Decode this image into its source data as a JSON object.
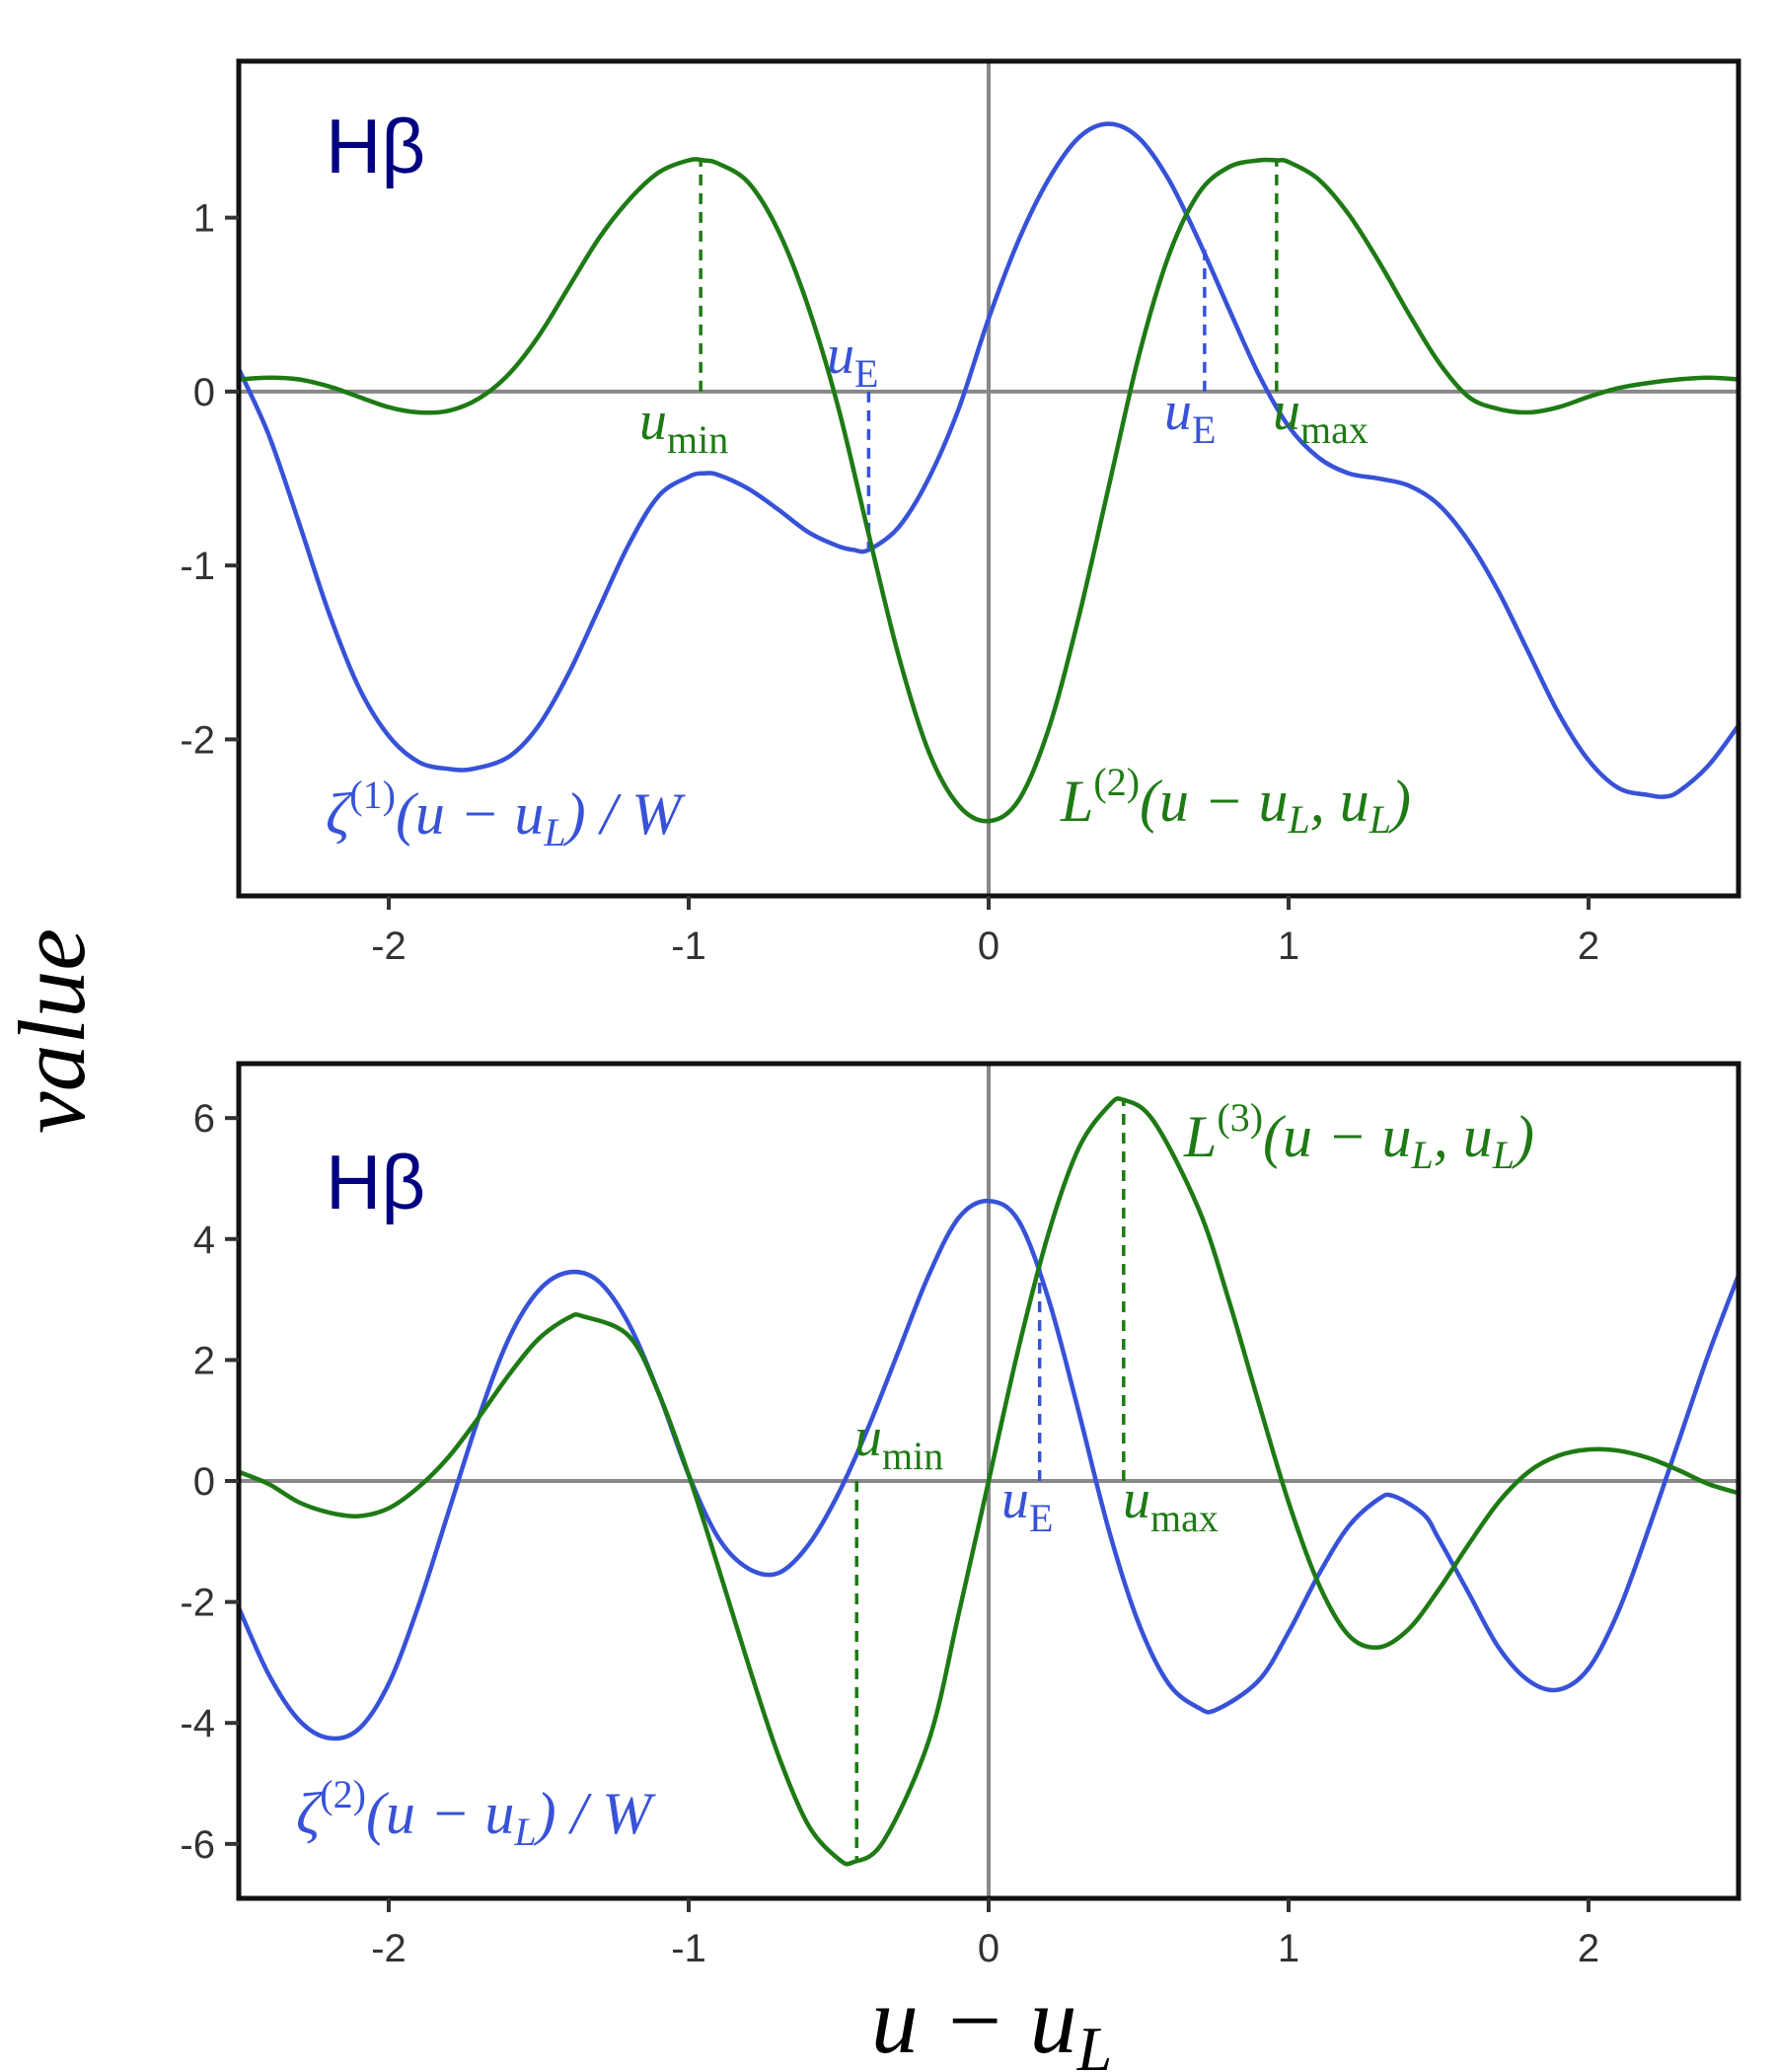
{
  "figure": {
    "ylabel": "value",
    "xlabel": {
      "main": "u − u",
      "sub": "L"
    }
  },
  "colors": {
    "blue": "#3752d8",
    "green": "#1e7a14",
    "zero_line": "#888888",
    "frame": "#111111",
    "panel_tag": "#000080"
  },
  "panels": [
    {
      "tag": "Hβ",
      "blue_label": {
        "head": "ζ",
        "sup": "(1)",
        "body": "(u − u",
        "sub": "L",
        "tail": ") / W"
      },
      "green_label": {
        "head": "L",
        "sup": "(2)",
        "body": "(u − u",
        "sub": "L",
        "mid": ", u",
        "sub2": "L",
        "tail": ")"
      },
      "markers": [
        {
          "var": "u",
          "sub": "min",
          "color": "green"
        },
        {
          "var": "u",
          "sub": "E",
          "color": "blue"
        },
        {
          "var": "u",
          "sub": "E",
          "color": "blue"
        },
        {
          "var": "u",
          "sub": "max",
          "color": "green"
        }
      ]
    },
    {
      "tag": "Hβ",
      "blue_label": {
        "head": "ζ",
        "sup": "(2)",
        "body": "(u − u",
        "sub": "L",
        "tail": ") / W"
      },
      "green_label": {
        "head": "L",
        "sup": "(3)",
        "body": "(u − u",
        "sub": "L",
        "mid": ", u",
        "sub2": "L",
        "tail": ")"
      },
      "markers": [
        {
          "var": "u",
          "sub": "min",
          "color": "green"
        },
        {
          "var": "u",
          "sub": "E",
          "color": "blue"
        },
        {
          "var": "u",
          "sub": "max",
          "color": "green"
        }
      ]
    }
  ],
  "chart_data": [
    {
      "type": "line",
      "xlim": [
        -2.5,
        2.5
      ],
      "ylim": [
        -2.9,
        1.9
      ],
      "xticks": [
        -2,
        -1,
        0,
        1,
        2
      ],
      "yticks": [
        -2,
        -1,
        0,
        1
      ],
      "reference_lines": {
        "x": 0,
        "y": 0
      },
      "series": [
        {
          "color": "blue",
          "points": [
            [
              -2.5,
              0.13
            ],
            [
              -2.4,
              -0.25
            ],
            [
              -2.3,
              -0.75
            ],
            [
              -2.2,
              -1.27
            ],
            [
              -2.1,
              -1.7
            ],
            [
              -2.0,
              -1.98
            ],
            [
              -1.9,
              -2.13
            ],
            [
              -1.8,
              -2.17
            ],
            [
              -1.72,
              -2.17
            ],
            [
              -1.6,
              -2.1
            ],
            [
              -1.5,
              -1.92
            ],
            [
              -1.4,
              -1.62
            ],
            [
              -1.3,
              -1.25
            ],
            [
              -1.2,
              -0.88
            ],
            [
              -1.1,
              -0.6
            ],
            [
              -1.0,
              -0.49
            ],
            [
              -0.95,
              -0.47
            ],
            [
              -0.9,
              -0.48
            ],
            [
              -0.8,
              -0.56
            ],
            [
              -0.7,
              -0.68
            ],
            [
              -0.6,
              -0.81
            ],
            [
              -0.5,
              -0.89
            ],
            [
              -0.45,
              -0.91
            ],
            [
              -0.4,
              -0.91
            ],
            [
              -0.3,
              -0.78
            ],
            [
              -0.2,
              -0.5
            ],
            [
              -0.1,
              -0.1
            ],
            [
              0.0,
              0.42
            ],
            [
              0.1,
              0.87
            ],
            [
              0.2,
              1.22
            ],
            [
              0.3,
              1.46
            ],
            [
              0.4,
              1.54
            ],
            [
              0.5,
              1.46
            ],
            [
              0.6,
              1.22
            ],
            [
              0.7,
              0.87
            ],
            [
              0.8,
              0.48
            ],
            [
              0.9,
              0.1
            ],
            [
              1.0,
              -0.2
            ],
            [
              1.1,
              -0.38
            ],
            [
              1.2,
              -0.47
            ],
            [
              1.3,
              -0.5
            ],
            [
              1.4,
              -0.54
            ],
            [
              1.5,
              -0.65
            ],
            [
              1.6,
              -0.86
            ],
            [
              1.7,
              -1.15
            ],
            [
              1.8,
              -1.5
            ],
            [
              1.9,
              -1.85
            ],
            [
              2.0,
              -2.12
            ],
            [
              2.1,
              -2.28
            ],
            [
              2.2,
              -2.32
            ],
            [
              2.25,
              -2.33
            ],
            [
              2.3,
              -2.3
            ],
            [
              2.4,
              -2.15
            ],
            [
              2.5,
              -1.92
            ]
          ]
        },
        {
          "color": "green",
          "points": [
            [
              -2.5,
              0.07
            ],
            [
              -2.4,
              0.08
            ],
            [
              -2.3,
              0.07
            ],
            [
              -2.2,
              0.03
            ],
            [
              -2.1,
              -0.03
            ],
            [
              -2.0,
              -0.09
            ],
            [
              -1.9,
              -0.12
            ],
            [
              -1.8,
              -0.11
            ],
            [
              -1.7,
              -0.04
            ],
            [
              -1.6,
              0.1
            ],
            [
              -1.5,
              0.32
            ],
            [
              -1.4,
              0.6
            ],
            [
              -1.3,
              0.88
            ],
            [
              -1.2,
              1.1
            ],
            [
              -1.1,
              1.26
            ],
            [
              -1.0,
              1.33
            ],
            [
              -0.95,
              1.33
            ],
            [
              -0.9,
              1.31
            ],
            [
              -0.8,
              1.2
            ],
            [
              -0.7,
              0.92
            ],
            [
              -0.6,
              0.48
            ],
            [
              -0.5,
              -0.1
            ],
            [
              -0.4,
              -0.82
            ],
            [
              -0.3,
              -1.52
            ],
            [
              -0.2,
              -2.07
            ],
            [
              -0.1,
              -2.38
            ],
            [
              0.0,
              -2.47
            ],
            [
              0.1,
              -2.35
            ],
            [
              0.2,
              -1.94
            ],
            [
              0.3,
              -1.3
            ],
            [
              0.4,
              -0.55
            ],
            [
              0.5,
              0.2
            ],
            [
              0.6,
              0.78
            ],
            [
              0.7,
              1.14
            ],
            [
              0.8,
              1.29
            ],
            [
              0.9,
              1.33
            ],
            [
              0.96,
              1.33
            ],
            [
              1.0,
              1.32
            ],
            [
              1.1,
              1.22
            ],
            [
              1.2,
              1.02
            ],
            [
              1.3,
              0.75
            ],
            [
              1.4,
              0.45
            ],
            [
              1.5,
              0.17
            ],
            [
              1.6,
              -0.03
            ],
            [
              1.7,
              -0.1
            ],
            [
              1.8,
              -0.12
            ],
            [
              1.9,
              -0.09
            ],
            [
              2.0,
              -0.03
            ],
            [
              2.1,
              0.02
            ],
            [
              2.2,
              0.05
            ],
            [
              2.3,
              0.07
            ],
            [
              2.4,
              0.08
            ],
            [
              2.5,
              0.07
            ]
          ]
        }
      ],
      "markers": [
        {
          "x": -0.96,
          "y": 1.33,
          "color": "green"
        },
        {
          "x": -0.4,
          "y": -0.9,
          "color": "blue"
        },
        {
          "x": 0.72,
          "y": 0.82,
          "color": "blue"
        },
        {
          "x": 0.96,
          "y": 1.33,
          "color": "green"
        }
      ]
    },
    {
      "type": "line",
      "xlim": [
        -2.5,
        2.5
      ],
      "ylim": [
        -6.9,
        6.9
      ],
      "xticks": [
        -2,
        -1,
        0,
        1,
        2
      ],
      "yticks": [
        -6,
        -4,
        -2,
        0,
        2,
        4,
        6
      ],
      "reference_lines": {
        "x": 0,
        "y": 0
      },
      "series": [
        {
          "color": "blue",
          "points": [
            [
              -2.5,
              -2.1
            ],
            [
              -2.4,
              -3.2
            ],
            [
              -2.3,
              -3.95
            ],
            [
              -2.2,
              -4.25
            ],
            [
              -2.1,
              -4.1
            ],
            [
              -2.0,
              -3.35
            ],
            [
              -1.9,
              -2.05
            ],
            [
              -1.8,
              -0.5
            ],
            [
              -1.7,
              1.05
            ],
            [
              -1.6,
              2.35
            ],
            [
              -1.5,
              3.15
            ],
            [
              -1.4,
              3.45
            ],
            [
              -1.3,
              3.3
            ],
            [
              -1.2,
              2.6
            ],
            [
              -1.1,
              1.45
            ],
            [
              -1.0,
              0.1
            ],
            [
              -0.9,
              -0.95
            ],
            [
              -0.8,
              -1.45
            ],
            [
              -0.7,
              -1.52
            ],
            [
              -0.6,
              -1.05
            ],
            [
              -0.5,
              -0.2
            ],
            [
              -0.4,
              0.9
            ],
            [
              -0.3,
              2.15
            ],
            [
              -0.2,
              3.4
            ],
            [
              -0.1,
              4.35
            ],
            [
              0.0,
              4.63
            ],
            [
              0.1,
              4.3
            ],
            [
              0.2,
              3.0
            ],
            [
              0.3,
              1.15
            ],
            [
              0.4,
              -0.8
            ],
            [
              0.5,
              -2.35
            ],
            [
              0.6,
              -3.35
            ],
            [
              0.7,
              -3.75
            ],
            [
              0.76,
              -3.78
            ],
            [
              0.9,
              -3.3
            ],
            [
              1.0,
              -2.5
            ],
            [
              1.1,
              -1.55
            ],
            [
              1.2,
              -0.75
            ],
            [
              1.3,
              -0.3
            ],
            [
              1.35,
              -0.25
            ],
            [
              1.45,
              -0.55
            ],
            [
              1.5,
              -0.95
            ],
            [
              1.6,
              -1.85
            ],
            [
              1.7,
              -2.75
            ],
            [
              1.8,
              -3.3
            ],
            [
              1.9,
              -3.45
            ],
            [
              2.0,
              -3.1
            ],
            [
              2.1,
              -2.15
            ],
            [
              2.2,
              -0.8
            ],
            [
              2.3,
              0.65
            ],
            [
              2.4,
              2.1
            ],
            [
              2.5,
              3.4
            ]
          ]
        },
        {
          "color": "green",
          "points": [
            [
              -2.5,
              0.15
            ],
            [
              -2.4,
              -0.05
            ],
            [
              -2.3,
              -0.35
            ],
            [
              -2.2,
              -0.52
            ],
            [
              -2.1,
              -0.58
            ],
            [
              -2.0,
              -0.45
            ],
            [
              -1.9,
              -0.1
            ],
            [
              -1.8,
              0.4
            ],
            [
              -1.7,
              1.05
            ],
            [
              -1.6,
              1.75
            ],
            [
              -1.5,
              2.35
            ],
            [
              -1.4,
              2.7
            ],
            [
              -1.35,
              2.72
            ],
            [
              -1.2,
              2.4
            ],
            [
              -1.1,
              1.45
            ],
            [
              -1.0,
              0.1
            ],
            [
              -0.9,
              -1.45
            ],
            [
              -0.8,
              -3.05
            ],
            [
              -0.7,
              -4.55
            ],
            [
              -0.6,
              -5.7
            ],
            [
              -0.5,
              -6.25
            ],
            [
              -0.45,
              -6.3
            ],
            [
              -0.35,
              -5.95
            ],
            [
              -0.2,
              -4.3
            ],
            [
              -0.1,
              -2.2
            ],
            [
              0.0,
              0.0
            ],
            [
              0.1,
              2.2
            ],
            [
              0.2,
              4.1
            ],
            [
              0.3,
              5.5
            ],
            [
              0.4,
              6.2
            ],
            [
              0.45,
              6.3
            ],
            [
              0.55,
              5.95
            ],
            [
              0.7,
              4.5
            ],
            [
              0.8,
              3.0
            ],
            [
              0.9,
              1.3
            ],
            [
              1.0,
              -0.35
            ],
            [
              1.1,
              -1.7
            ],
            [
              1.2,
              -2.55
            ],
            [
              1.3,
              -2.75
            ],
            [
              1.4,
              -2.45
            ],
            [
              1.5,
              -1.8
            ],
            [
              1.6,
              -1.05
            ],
            [
              1.7,
              -0.35
            ],
            [
              1.8,
              0.15
            ],
            [
              1.9,
              0.42
            ],
            [
              2.0,
              0.52
            ],
            [
              2.1,
              0.5
            ],
            [
              2.2,
              0.38
            ],
            [
              2.3,
              0.18
            ],
            [
              2.4,
              -0.05
            ],
            [
              2.5,
              -0.2
            ]
          ]
        }
      ],
      "markers": [
        {
          "x": -0.44,
          "y": -6.3,
          "color": "green"
        },
        {
          "x": 0.17,
          "y": 3.55,
          "color": "blue"
        },
        {
          "x": 0.45,
          "y": 6.3,
          "color": "green"
        }
      ]
    }
  ]
}
